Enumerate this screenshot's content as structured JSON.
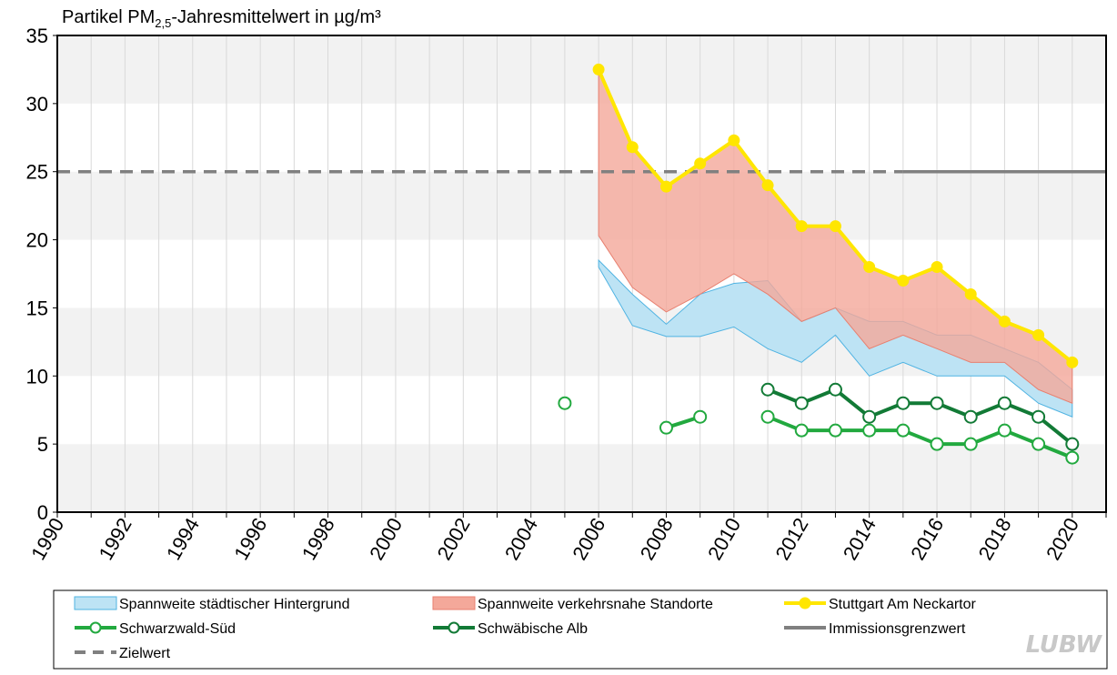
{
  "chart_data": {
    "type": "line",
    "title": {
      "prefix": "Partikel PM",
      "subscript": "2,5",
      "suffix": "-Jahresmittelwert in µg/m³"
    },
    "xlabel": "",
    "ylabel": "",
    "xlim": [
      1990,
      2021
    ],
    "ylim": [
      0,
      35
    ],
    "yticks": [
      0,
      5,
      10,
      15,
      20,
      25,
      30,
      35
    ],
    "xticks": [
      1990,
      1992,
      1994,
      1996,
      1998,
      2000,
      2002,
      2004,
      2006,
      2008,
      2010,
      2012,
      2014,
      2016,
      2018,
      2020
    ],
    "bands": [
      {
        "name": "Spannweite städtischer Hintergrund",
        "x": [
          2006,
          2007,
          2008,
          2009,
          2010,
          2011,
          2012,
          2013,
          2014,
          2015,
          2016,
          2017,
          2018,
          2019,
          2020
        ],
        "lower": [
          18.0,
          13.7,
          12.9,
          12.9,
          13.6,
          12.0,
          11.0,
          13.0,
          10.0,
          11.0,
          10.0,
          10.0,
          10.0,
          8.0,
          7.0
        ],
        "upper": [
          18.5,
          16.0,
          13.8,
          16.0,
          16.8,
          17.0,
          14.0,
          15.0,
          14.0,
          14.0,
          13.0,
          13.0,
          12.0,
          11.0,
          9.0
        ],
        "fill": "#bde3f4",
        "stroke": "#4fb3e2"
      },
      {
        "name": "Spannweite verkehrsnahe Standorte",
        "x": [
          2006,
          2007,
          2008,
          2009,
          2010,
          2011,
          2012,
          2013,
          2014,
          2015,
          2016,
          2017,
          2018,
          2019,
          2020
        ],
        "lower": [
          20.3,
          16.5,
          14.7,
          16.0,
          17.5,
          16.0,
          14.0,
          15.0,
          12.0,
          13.0,
          12.0,
          11.0,
          11.0,
          9.0,
          8.0
        ],
        "upper": [
          32.5,
          26.8,
          23.9,
          25.6,
          27.3,
          24.0,
          21.0,
          21.0,
          18.0,
          17.0,
          18.0,
          16.0,
          14.0,
          13.0,
          11.0
        ],
        "fill": "#f4a89a",
        "stroke": "#e88070",
        "opacity": 0.8
      }
    ],
    "series": [
      {
        "name": "Stuttgart Am Neckartor",
        "color": "#ffe600",
        "marker": "filled-circle",
        "segments": [
          [
            [
              2006,
              32.5
            ],
            [
              2007,
              26.8
            ],
            [
              2008,
              23.9
            ],
            [
              2009,
              25.6
            ],
            [
              2010,
              27.3
            ],
            [
              2011,
              24.0
            ],
            [
              2012,
              21.0
            ],
            [
              2013,
              21.0
            ],
            [
              2014,
              18.0
            ],
            [
              2015,
              17.0
            ],
            [
              2016,
              18.0
            ],
            [
              2017,
              16.0
            ],
            [
              2018,
              14.0
            ],
            [
              2019,
              13.0
            ],
            [
              2020,
              11.0
            ]
          ]
        ]
      },
      {
        "name": "Schwarzwald-Süd",
        "color": "#22a93f",
        "marker": "open-circle",
        "segments": [
          [
            [
              2005,
              8.0
            ]
          ],
          [
            [
              2008,
              6.2
            ],
            [
              2009,
              7.0
            ]
          ],
          [
            [
              2011,
              7.0
            ],
            [
              2012,
              6.0
            ],
            [
              2013,
              6.0
            ],
            [
              2014,
              6.0
            ],
            [
              2015,
              6.0
            ],
            [
              2016,
              5.0
            ],
            [
              2017,
              5.0
            ],
            [
              2018,
              6.0
            ],
            [
              2019,
              5.0
            ],
            [
              2020,
              4.0
            ]
          ]
        ]
      },
      {
        "name": "Schwäbische Alb",
        "color": "#127a36",
        "marker": "open-circle",
        "segments": [
          [
            [
              2011,
              9.0
            ],
            [
              2012,
              8.0
            ],
            [
              2013,
              9.0
            ],
            [
              2014,
              7.0
            ],
            [
              2015,
              8.0
            ],
            [
              2016,
              8.0
            ],
            [
              2017,
              7.0
            ],
            [
              2018,
              8.0
            ],
            [
              2019,
              7.0
            ],
            [
              2020,
              5.0
            ]
          ]
        ]
      }
    ],
    "reference_lines": [
      {
        "name": "Immissionsgrenzwert",
        "value": 25,
        "x_from": 2015,
        "x_to": 2021,
        "color": "#808080",
        "dash": "solid"
      },
      {
        "name": "Zielwert",
        "value": 25,
        "x_from": 1990,
        "x_to": 2015,
        "color": "#808080",
        "dash": "dashed"
      }
    ],
    "grid": {
      "horizontal_bands": true,
      "band_color": "#f2f2f2",
      "vertical_gridlines": true
    },
    "legend": {
      "placement": "bottom",
      "entries": [
        {
          "label": "Spannweite städtischer Hintergrund",
          "kind": "band",
          "fill": "#bde3f4",
          "stroke": "#4fb3e2"
        },
        {
          "label": "Spannweite verkehrsnahe Standorte",
          "kind": "band",
          "fill": "#f4a89a",
          "stroke": "#e88070"
        },
        {
          "label": "Stuttgart Am Neckartor",
          "kind": "line-filled",
          "color": "#ffe600"
        },
        {
          "label": "Schwarzwald-Süd",
          "kind": "line-open",
          "color": "#22a93f"
        },
        {
          "label": "Schwäbische Alb",
          "kind": "line-open",
          "color": "#127a36"
        },
        {
          "label": "Immissionsgrenzwert",
          "kind": "line-solid",
          "color": "#808080"
        },
        {
          "label": "Zielwert",
          "kind": "line-dashed",
          "color": "#808080"
        }
      ]
    }
  },
  "logo": {
    "text": "LUBW"
  }
}
